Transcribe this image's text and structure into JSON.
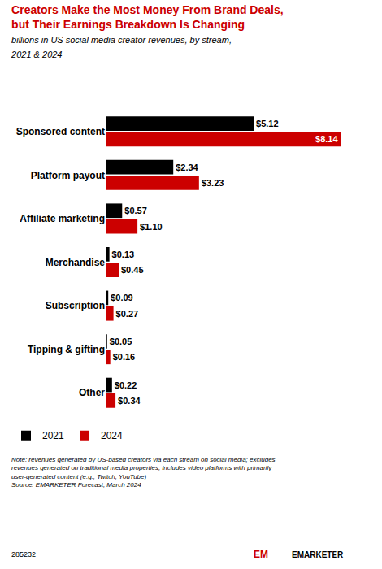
{
  "chart_data": {
    "type": "bar",
    "orientation": "horizontal",
    "title": "Creators Make the Most Money From Brand Deals,\nbut Their Earnings Breakdown Is Changing",
    "subtitle": "billions in US social media creator revenues, by stream,\n2021 & 2024",
    "categories": [
      "Sponsored content",
      "Platform payout",
      "Affiliate marketing",
      "Merchandise",
      "Subscription",
      "Tipping & gifting",
      "Other"
    ],
    "series": [
      {
        "name": "2021",
        "color": "#000000",
        "values": [
          5.12,
          2.34,
          0.57,
          0.13,
          0.09,
          0.05,
          0.22
        ],
        "value_labels": [
          "$5.12",
          "$2.34",
          "$0.57",
          "$0.13",
          "$0.09",
          "$0.05",
          "$0.22"
        ]
      },
      {
        "name": "2024",
        "color": "#cc0000",
        "values": [
          8.14,
          3.23,
          1.1,
          0.45,
          0.27,
          0.16,
          0.34
        ],
        "value_labels": [
          "$8.14",
          "$3.23",
          "$1.10",
          "$0.45",
          "$0.27",
          "$0.16",
          "$0.34"
        ]
      }
    ],
    "xlim": [
      0,
      9.0
    ],
    "data_labels": true,
    "tick_labels": "y",
    "grid": false,
    "legend": "bottom",
    "annotations": [
      "Note: revenues generated by US-based creators via each stream on social media; excludes\nrevenues generated on traditional media properties; includes video platforms with primarily\nuser-generated content (e.g., Twitch, YouTube)\nSource: EMARKETER Forecast, March 2024",
      "285232",
      "EM",
      "EMARKETER"
    ]
  }
}
